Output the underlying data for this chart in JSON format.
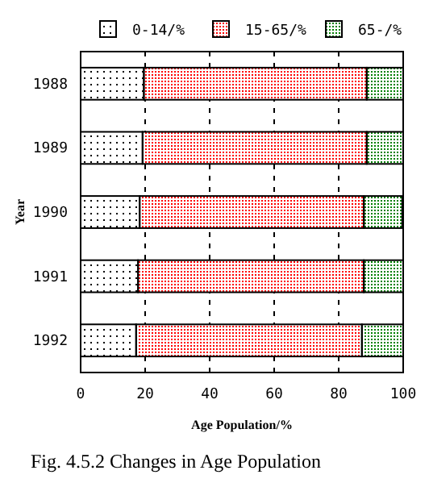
{
  "chart_data": {
    "type": "bar",
    "orientation": "horizontal",
    "stacked": true,
    "title": "Fig. 4.5.2 Changes in Age Population",
    "xlabel": "Age Population/%",
    "ylabel": "Year",
    "categories": [
      "1988",
      "1989",
      "1990",
      "1991",
      "1992"
    ],
    "series": [
      {
        "name": "0-14/%",
        "color": "#000000",
        "values": [
          19.6,
          19.2,
          18.3,
          17.8,
          17.2
        ]
      },
      {
        "name": "15-65/%",
        "color": "#ff0000",
        "values": [
          69.1,
          69.5,
          69.5,
          70,
          70
        ]
      },
      {
        "name": "65-/%",
        "color": "#008000",
        "values": [
          11.3,
          11.3,
          11.9,
          12.2,
          12.8
        ]
      }
    ],
    "xlim": [
      0,
      100
    ],
    "xticks": [
      0,
      20,
      40,
      60,
      80,
      100
    ],
    "grid": "x",
    "legend": "top"
  }
}
